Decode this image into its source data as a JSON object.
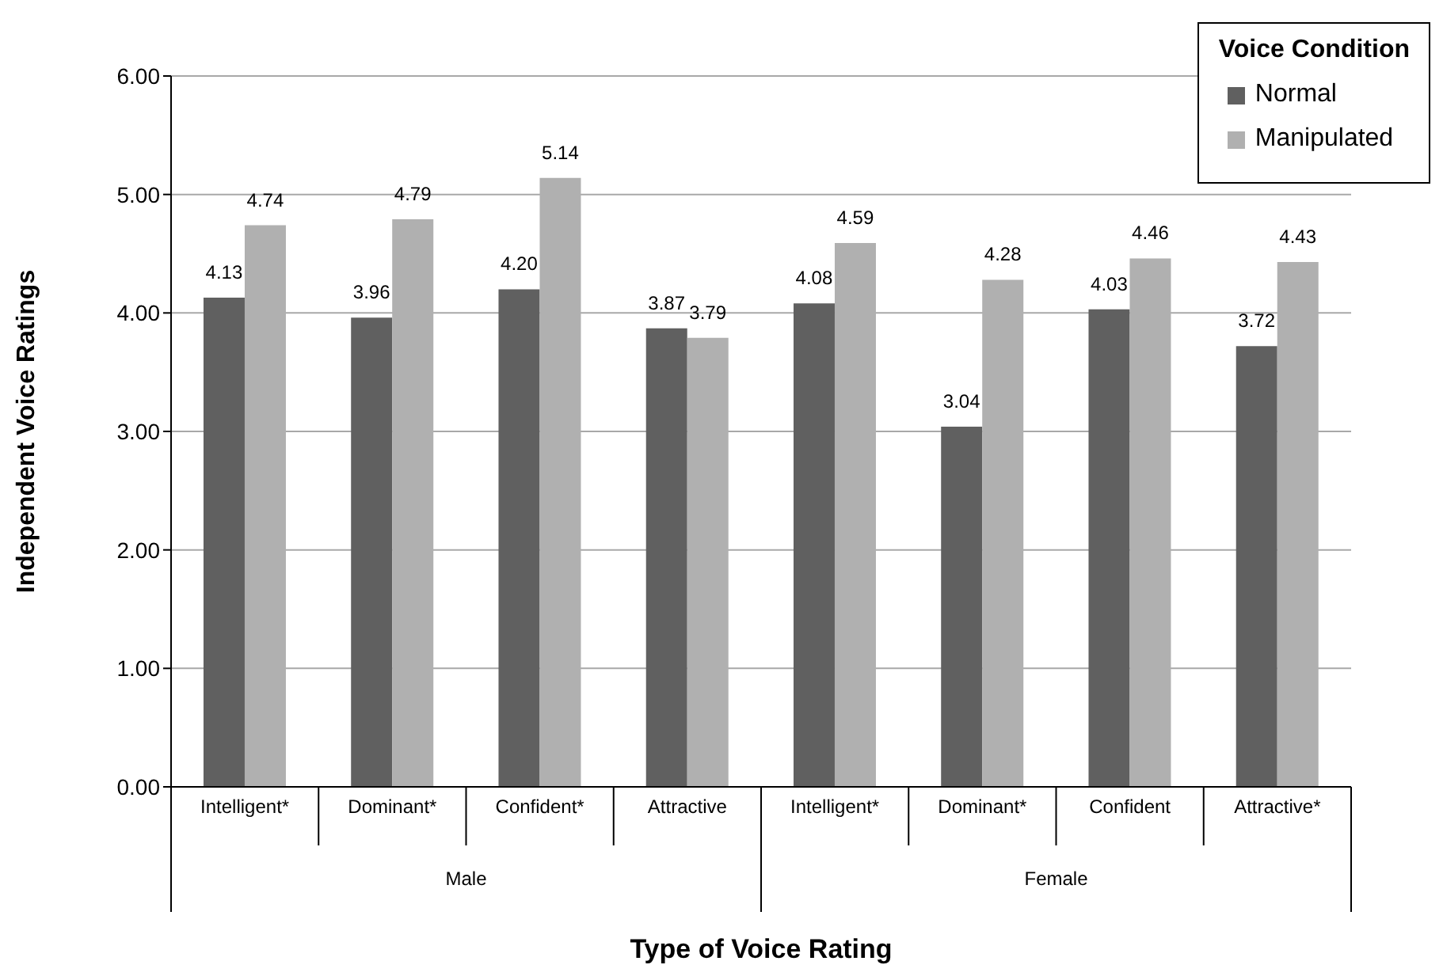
{
  "chart_data": {
    "type": "bar",
    "xlabel": "Type of Voice Rating",
    "ylabel": "Independent Voice Ratings",
    "legend_title": "Voice Condition",
    "categories": [
      "Intelligent*",
      "Dominant*",
      "Confident*",
      "Attractive",
      "Intelligent*",
      "Dominant*",
      "Confident",
      "Attractive*"
    ],
    "series": [
      {
        "name": "Normal",
        "color": "#606060",
        "values": [
          4.13,
          3.96,
          4.2,
          3.87,
          4.08,
          3.04,
          4.03,
          3.72
        ],
        "value_labels": [
          "4.13",
          "3.96",
          "4.20",
          "3.87",
          "4.08",
          "3.04",
          "4.03",
          "3.72"
        ]
      },
      {
        "name": "Manipulated",
        "color": "#b0b0b0",
        "values": [
          4.74,
          4.79,
          5.14,
          3.79,
          4.59,
          4.28,
          4.46,
          4.43
        ],
        "value_labels": [
          "4.74",
          "4.79",
          "5.14",
          "3.79",
          "4.59",
          "4.28",
          "4.46",
          "4.43"
        ]
      }
    ],
    "annotations": [
      "Male",
      "Female"
    ],
    "ylim": [
      0,
      6
    ],
    "yticks": [
      {
        "value": 0,
        "label": "0.00"
      },
      {
        "value": 1,
        "label": "1.00"
      },
      {
        "value": 2,
        "label": "2.00"
      },
      {
        "value": 3,
        "label": "3.00"
      },
      {
        "value": 4,
        "label": "4.00"
      },
      {
        "value": 5,
        "label": "5.00"
      },
      {
        "value": 6,
        "label": "6.00"
      }
    ],
    "grid": "y",
    "legend": "top right"
  }
}
